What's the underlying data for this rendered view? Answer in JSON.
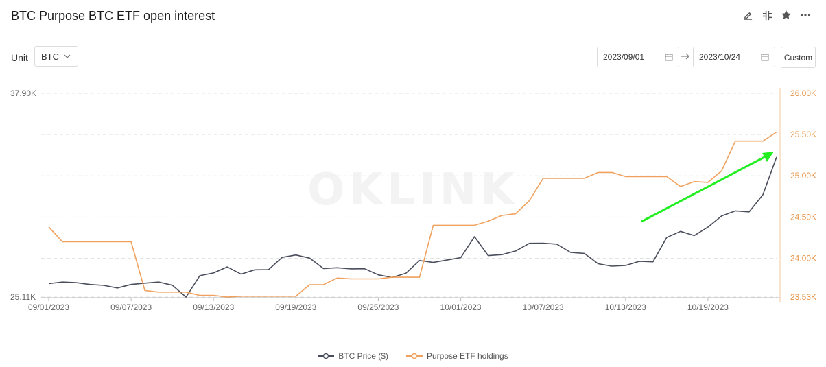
{
  "header": {
    "title": "BTC Purpose BTC ETF open interest",
    "icons": [
      "edit-icon",
      "compare-icon",
      "star-icon",
      "more-icon"
    ]
  },
  "controls": {
    "unit_label": "Unit",
    "unit_value": "BTC",
    "start_date": "2023/09/01",
    "end_date": "2023/10/24",
    "custom_label": "Custom"
  },
  "colors": {
    "btc_price": "#4a4d5c",
    "holdings": "#f0a15e",
    "annotation_arrow": "#22ee22",
    "grid": "#e3e3e3",
    "axis_text_left": "#666666",
    "axis_text_right": "#e8954a"
  },
  "chart_data": {
    "type": "line",
    "x_tick_labels": [
      "09/01/2023",
      "09/07/2023",
      "09/13/2023",
      "09/19/2023",
      "09/25/2023",
      "10/01/2023",
      "10/07/2023",
      "10/13/2023",
      "10/19/2023"
    ],
    "left_axis": {
      "min": 25110,
      "max": 37900,
      "labels": [
        "37.90K",
        "25.11K"
      ]
    },
    "right_axis": {
      "min": 23530,
      "max": 26000,
      "labels": [
        "26.00K",
        "25.50K",
        "25.00K",
        "24.50K",
        "24.00K",
        "23.53K"
      ]
    },
    "grid": true,
    "legend_position": "bottom",
    "annotation": "arrow",
    "series": [
      {
        "name": "BTC Price ($)",
        "axis": "left",
        "x": [
          "09/01/2023",
          "09/02/2023",
          "09/03/2023",
          "09/04/2023",
          "09/05/2023",
          "09/06/2023",
          "09/07/2023",
          "09/08/2023",
          "09/09/2023",
          "09/10/2023",
          "09/11/2023",
          "09/12/2023",
          "09/13/2023",
          "09/14/2023",
          "09/15/2023",
          "09/16/2023",
          "09/17/2023",
          "09/18/2023",
          "09/19/2023",
          "09/20/2023",
          "09/21/2023",
          "09/22/2023",
          "09/23/2023",
          "09/24/2023",
          "09/25/2023",
          "09/26/2023",
          "09/27/2023",
          "09/28/2023",
          "09/29/2023",
          "09/30/2023",
          "10/01/2023",
          "10/02/2023",
          "10/03/2023",
          "10/04/2023",
          "10/05/2023",
          "10/06/2023",
          "10/07/2023",
          "10/08/2023",
          "10/09/2023",
          "10/10/2023",
          "10/11/2023",
          "10/12/2023",
          "10/13/2023",
          "10/14/2023",
          "10/15/2023",
          "10/16/2023",
          "10/17/2023",
          "10/18/2023",
          "10/19/2023",
          "10/20/2023",
          "10/21/2023",
          "10/22/2023",
          "10/23/2023",
          "10/24/2023"
        ],
        "values": [
          25950,
          26050,
          26010,
          25900,
          25840,
          25680,
          25900,
          25980,
          26050,
          25850,
          25110,
          26450,
          26620,
          27000,
          26550,
          26820,
          26830,
          27600,
          27750,
          27550,
          26900,
          26950,
          26880,
          26890,
          26500,
          26340,
          26600,
          27400,
          27280,
          27430,
          27580,
          28900,
          27710,
          27770,
          28000,
          28480,
          28490,
          28430,
          27910,
          27850,
          27200,
          27050,
          27090,
          27350,
          27320,
          28850,
          29230,
          28970,
          29500,
          30200,
          30520,
          30460,
          31530,
          33900
        ]
      },
      {
        "name": "Purpose ETF holdings",
        "axis": "right",
        "x": [
          "09/01/2023",
          "09/02/2023",
          "09/03/2023",
          "09/04/2023",
          "09/05/2023",
          "09/06/2023",
          "09/07/2023",
          "09/08/2023",
          "09/09/2023",
          "09/10/2023",
          "09/11/2023",
          "09/12/2023",
          "09/13/2023",
          "09/14/2023",
          "09/15/2023",
          "09/16/2023",
          "09/17/2023",
          "09/18/2023",
          "09/19/2023",
          "09/20/2023",
          "09/21/2023",
          "09/22/2023",
          "09/23/2023",
          "09/24/2023",
          "09/25/2023",
          "09/26/2023",
          "09/27/2023",
          "09/28/2023",
          "09/29/2023",
          "09/30/2023",
          "10/01/2023",
          "10/02/2023",
          "10/03/2023",
          "10/04/2023",
          "10/05/2023",
          "10/06/2023",
          "10/07/2023",
          "10/08/2023",
          "10/09/2023",
          "10/10/2023",
          "10/11/2023",
          "10/12/2023",
          "10/13/2023",
          "10/14/2023",
          "10/15/2023",
          "10/16/2023",
          "10/17/2023",
          "10/18/2023",
          "10/19/2023",
          "10/20/2023",
          "10/21/2023",
          "10/22/2023",
          "10/23/2023",
          "10/24/2023"
        ],
        "values": [
          24380,
          24200,
          24200,
          24200,
          24200,
          24200,
          24200,
          23610,
          23590,
          23590,
          23590,
          23550,
          23550,
          23530,
          23540,
          23540,
          23540,
          23540,
          23540,
          23680,
          23680,
          23760,
          23750,
          23750,
          23750,
          23770,
          23770,
          23770,
          24400,
          24400,
          24400,
          24400,
          24450,
          24520,
          24540,
          24700,
          24970,
          24970,
          24970,
          24970,
          25040,
          25040,
          24990,
          24990,
          24990,
          24990,
          24870,
          24930,
          24920,
          25060,
          25420,
          25420,
          25420,
          25530
        ]
      }
    ]
  }
}
